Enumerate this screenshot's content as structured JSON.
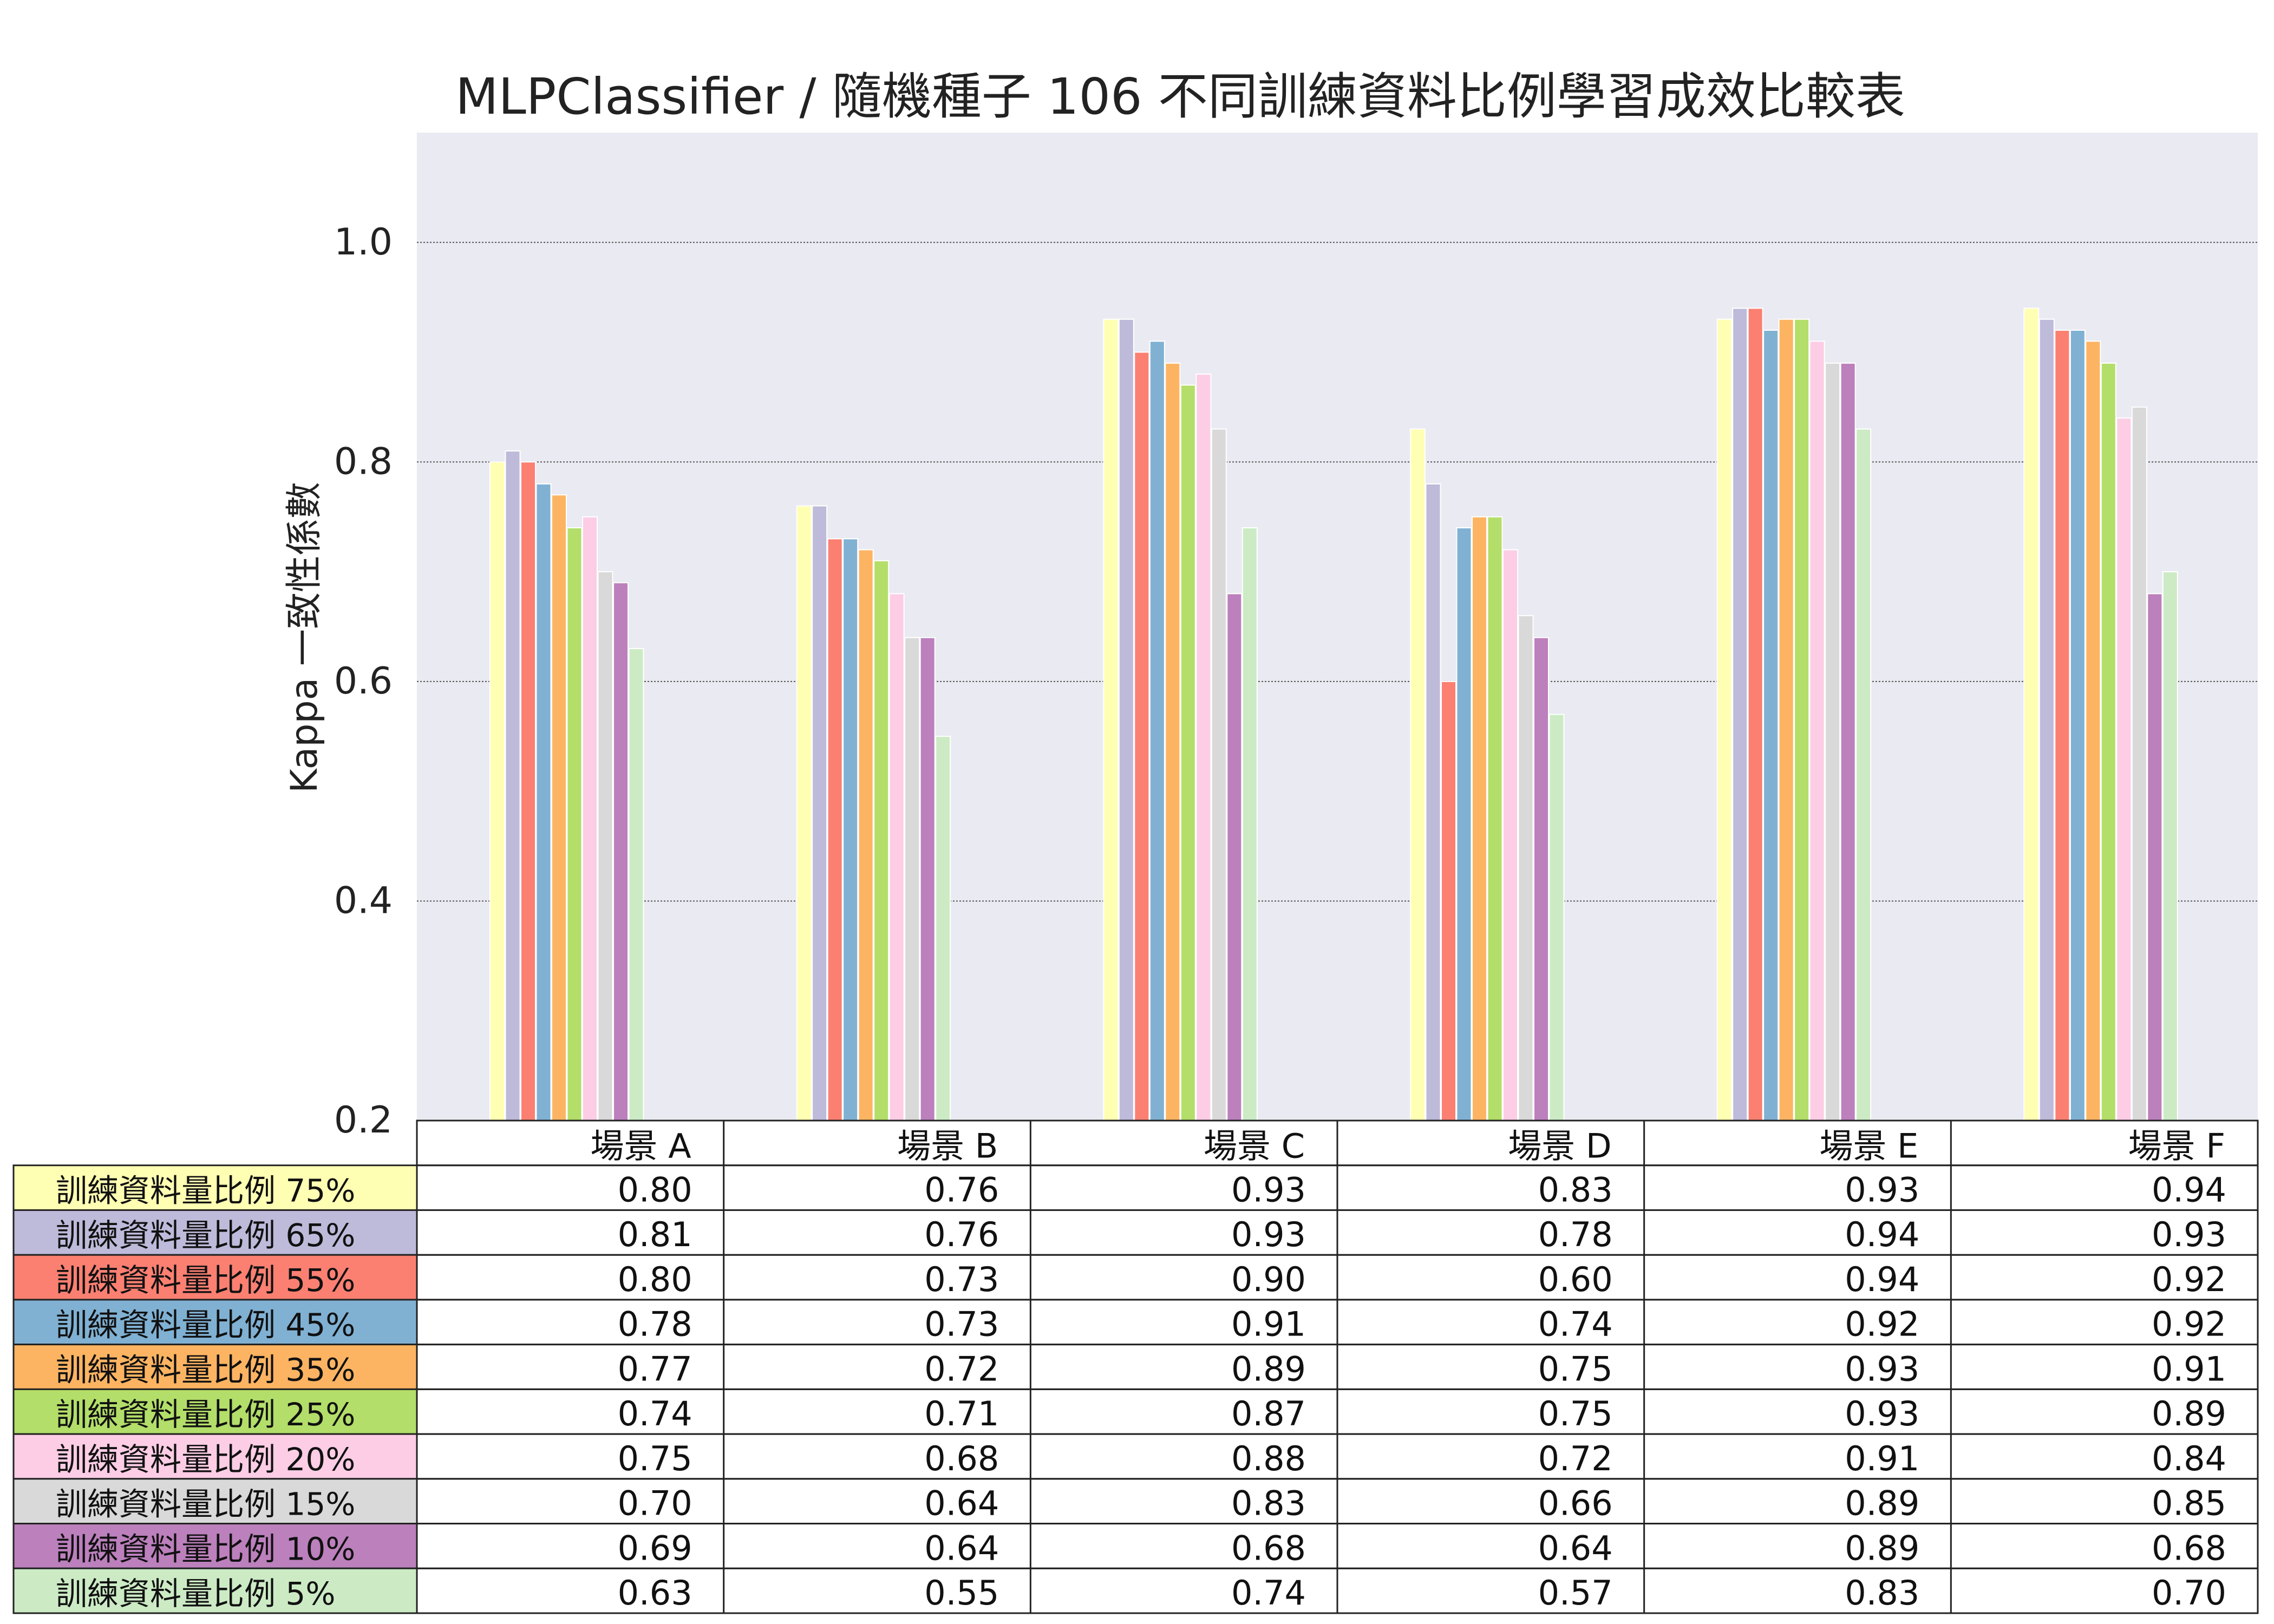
{
  "chart_data": {
    "type": "bar",
    "title": "MLPClassifier / 隨機種子 106 不同訓練資料比例學習成效比較表",
    "ylabel": "Kappa 一致性係數",
    "ylim": [
      0.2,
      1.1
    ],
    "yticks": [
      "0.2",
      "0.4",
      "0.6",
      "0.8",
      "1.0"
    ],
    "grid": true,
    "categories": [
      "場景 A",
      "場景 B",
      "場景 C",
      "場景 D",
      "場景 E",
      "場景 F"
    ],
    "series": [
      {
        "name": "訓練資料量比例 75%",
        "color": "#ffffb3",
        "values": [
          0.8,
          0.76,
          0.93,
          0.83,
          0.93,
          0.94
        ]
      },
      {
        "name": "訓練資料量比例 65%",
        "color": "#bebada",
        "values": [
          0.81,
          0.76,
          0.93,
          0.78,
          0.94,
          0.93
        ]
      },
      {
        "name": "訓練資料量比例 55%",
        "color": "#fb8072",
        "values": [
          0.8,
          0.73,
          0.9,
          0.6,
          0.94,
          0.92
        ]
      },
      {
        "name": "訓練資料量比例 45%",
        "color": "#80b1d3",
        "values": [
          0.78,
          0.73,
          0.91,
          0.74,
          0.92,
          0.92
        ]
      },
      {
        "name": "訓練資料量比例 35%",
        "color": "#fdb462",
        "values": [
          0.77,
          0.72,
          0.89,
          0.75,
          0.93,
          0.91
        ]
      },
      {
        "name": "訓練資料量比例 25%",
        "color": "#b3de69",
        "values": [
          0.74,
          0.71,
          0.87,
          0.75,
          0.93,
          0.89
        ]
      },
      {
        "name": "訓練資料量比例 20%",
        "color": "#fccde5",
        "values": [
          0.75,
          0.68,
          0.88,
          0.72,
          0.91,
          0.84
        ]
      },
      {
        "name": "訓練資料量比例 15%",
        "color": "#d9d9d9",
        "values": [
          0.7,
          0.64,
          0.83,
          0.66,
          0.89,
          0.85
        ]
      },
      {
        "name": "訓練資料量比例 10%",
        "color": "#bc80bd",
        "values": [
          0.69,
          0.64,
          0.68,
          0.64,
          0.89,
          0.68
        ]
      },
      {
        "name": "訓練資料量比例 5%",
        "color": "#ccebc5",
        "values": [
          0.63,
          0.55,
          0.74,
          0.57,
          0.83,
          0.7
        ]
      }
    ]
  },
  "table_values": [
    [
      "0.80",
      "0.76",
      "0.93",
      "0.83",
      "0.93",
      "0.94"
    ],
    [
      "0.81",
      "0.76",
      "0.93",
      "0.78",
      "0.94",
      "0.93"
    ],
    [
      "0.80",
      "0.73",
      "0.90",
      "0.60",
      "0.94",
      "0.92"
    ],
    [
      "0.78",
      "0.73",
      "0.91",
      "0.74",
      "0.92",
      "0.92"
    ],
    [
      "0.77",
      "0.72",
      "0.89",
      "0.75",
      "0.93",
      "0.91"
    ],
    [
      "0.74",
      "0.71",
      "0.87",
      "0.75",
      "0.93",
      "0.89"
    ],
    [
      "0.75",
      "0.68",
      "0.88",
      "0.72",
      "0.91",
      "0.84"
    ],
    [
      "0.70",
      "0.64",
      "0.83",
      "0.66",
      "0.89",
      "0.85"
    ],
    [
      "0.69",
      "0.64",
      "0.68",
      "0.64",
      "0.89",
      "0.68"
    ],
    [
      "0.63",
      "0.55",
      "0.74",
      "0.57",
      "0.83",
      "0.70"
    ]
  ],
  "colors": {
    "plot_background": "#eaeaf2",
    "grid": "#555555",
    "table_border": "#222222"
  }
}
